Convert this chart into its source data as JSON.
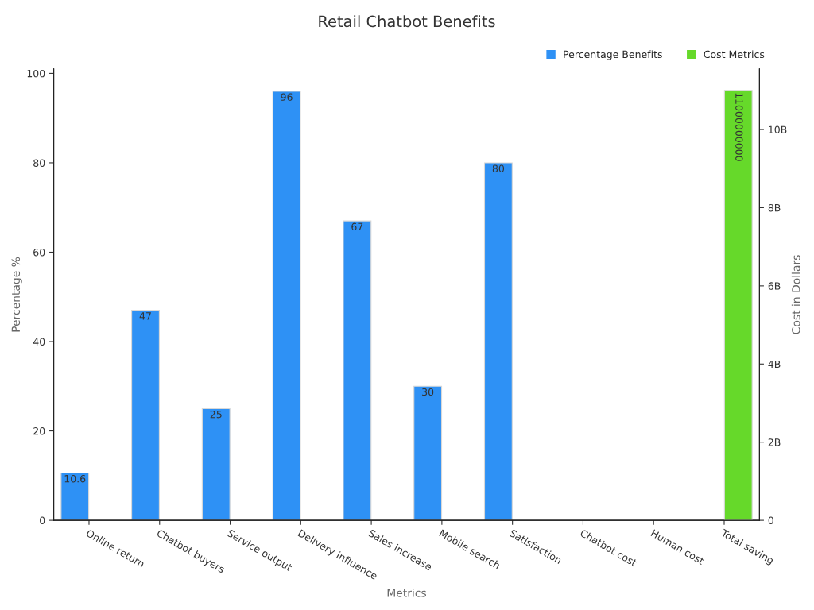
{
  "chart_data": {
    "type": "bar",
    "title": "Retail Chatbot Benefits",
    "xlabel": "Metrics",
    "ylabel": "Percentage %",
    "y2label": "Cost in Dollars",
    "categories": [
      "Online return",
      "Chatbot buyers",
      "Service output",
      "Delivery influence",
      "Sales increase",
      "Mobile search",
      "Satisfaction",
      "Chatbot cost",
      "Human cost",
      "Total saving"
    ],
    "series": [
      {
        "name": "Percentage Benefits",
        "color": "#2e91f5",
        "values": [
          10.6,
          47,
          25,
          96,
          67,
          30,
          80,
          null,
          null,
          null
        ],
        "value_labels": [
          "10.6",
          "47",
          "25",
          "96",
          "67",
          "30",
          "80",
          null,
          null,
          null
        ]
      },
      {
        "name": "Cost Metrics",
        "color": "#66d92a",
        "axis": "y2",
        "values": [
          null,
          null,
          null,
          null,
          null,
          null,
          null,
          null,
          null,
          11000000000
        ],
        "value_labels": [
          null,
          null,
          null,
          null,
          null,
          null,
          null,
          null,
          null,
          "11000000000"
        ]
      }
    ],
    "ylim": [
      0,
      101
    ],
    "yticks": [
      0,
      20,
      40,
      60,
      80,
      100
    ],
    "y2lim": [
      0,
      11550000000
    ],
    "y2ticks": [
      {
        "value": 0,
        "label": "0"
      },
      {
        "value": 2000000000,
        "label": "2B"
      },
      {
        "value": 4000000000,
        "label": "4B"
      },
      {
        "value": 6000000000,
        "label": "6B"
      },
      {
        "value": 8000000000,
        "label": "8B"
      },
      {
        "value": 10000000000,
        "label": "10B"
      }
    ],
    "grid": false,
    "legend": "top right"
  }
}
